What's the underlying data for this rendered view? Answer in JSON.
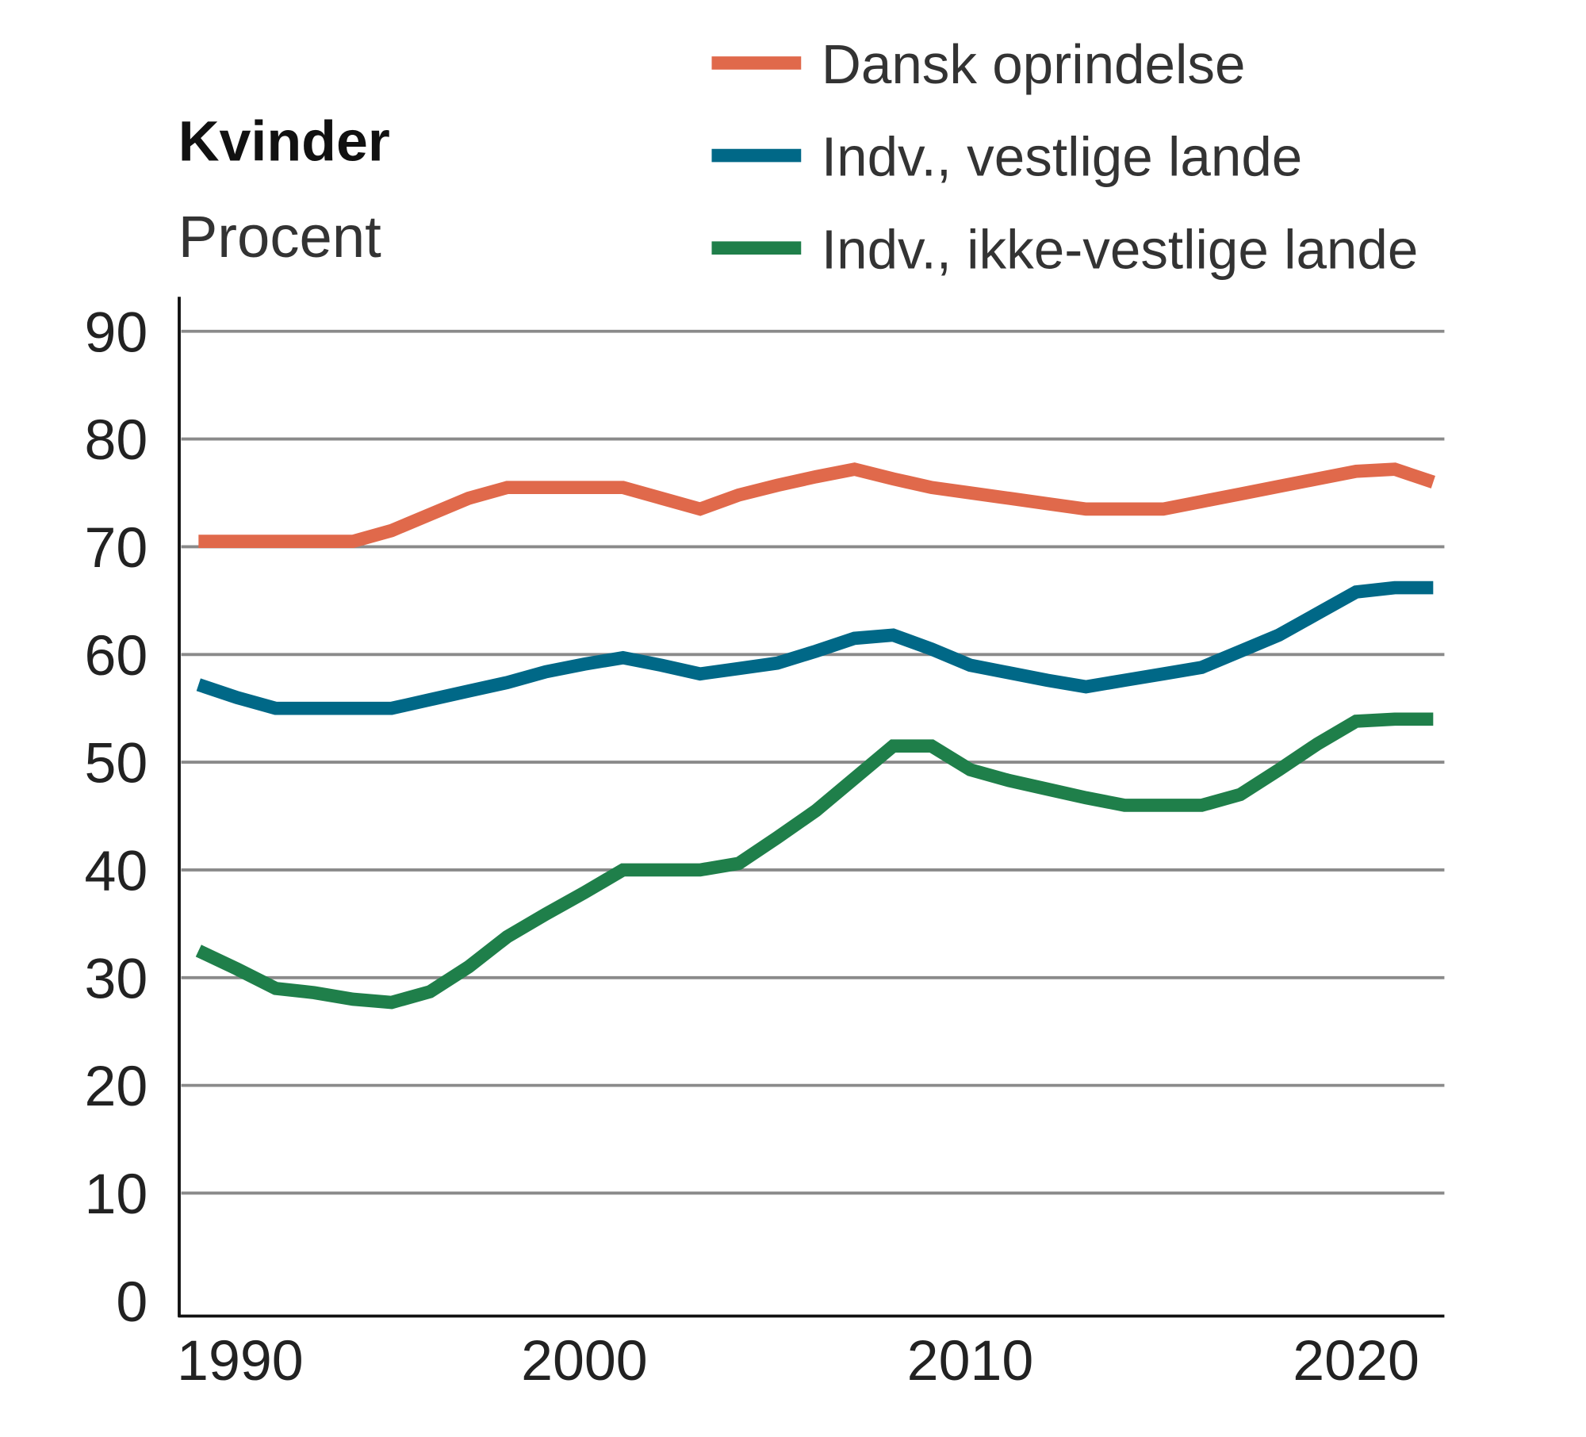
{
  "chart_data": {
    "type": "line",
    "title": "Kvinder",
    "ylabel": "Procent",
    "xlabel": "",
    "xlim": [
      1989.5,
      2022.3
    ],
    "ylim": [
      0,
      90
    ],
    "grid": true,
    "legend_placement": "top-right",
    "x_ticks": [
      1990,
      2000,
      2010,
      2020
    ],
    "y_ticks": [
      0,
      10,
      20,
      30,
      40,
      50,
      60,
      70,
      80,
      90
    ],
    "x": [
      1990,
      1991,
      1992,
      1993,
      1994,
      1995,
      1996,
      1997,
      1998,
      1999,
      2000,
      2001,
      2002,
      2003,
      2004,
      2005,
      2006,
      2007,
      2008,
      2009,
      2010,
      2011,
      2012,
      2013,
      2014,
      2015,
      2016,
      2017,
      2018,
      2019,
      2020,
      2021,
      2022
    ],
    "series": [
      {
        "name": "Dansk oprindelse",
        "color": "#e0694b",
        "values": [
          70.5,
          70.5,
          70.5,
          70.5,
          70.5,
          71.5,
          73,
          74.5,
          75.5,
          75.5,
          75.5,
          75.5,
          74.5,
          73.5,
          74.8,
          75.7,
          76.5,
          77.2,
          76.3,
          75.5,
          75,
          74.5,
          74,
          73.5,
          73.5,
          73.5,
          74.2,
          74.9,
          75.6,
          76.3,
          77,
          77.2,
          76
        ]
      },
      {
        "name": "Indv., vestlige lande",
        "color": "#006887",
        "values": [
          57.2,
          56,
          55,
          55,
          55,
          55,
          55.8,
          56.6,
          57.4,
          58.4,
          59.1,
          59.7,
          59,
          58.2,
          58.7,
          59.2,
          60.3,
          61.5,
          61.8,
          60.5,
          59,
          58.3,
          57.6,
          57,
          57.6,
          58.2,
          58.8,
          60.3,
          61.8,
          63.8,
          65.8,
          66.2,
          66.2
        ]
      },
      {
        "name": "Indv., ikke-vestlige lande",
        "color": "#1f7f4a",
        "values": [
          32.5,
          30.8,
          29,
          28.6,
          28,
          27.7,
          28.7,
          31,
          33.8,
          35.9,
          37.9,
          40,
          40,
          40,
          40.6,
          43,
          45.5,
          48.5,
          51.5,
          51.5,
          49.3,
          48.3,
          47.5,
          46.7,
          46,
          46,
          46,
          47,
          49.3,
          51.7,
          53.8,
          54,
          54
        ]
      }
    ]
  }
}
